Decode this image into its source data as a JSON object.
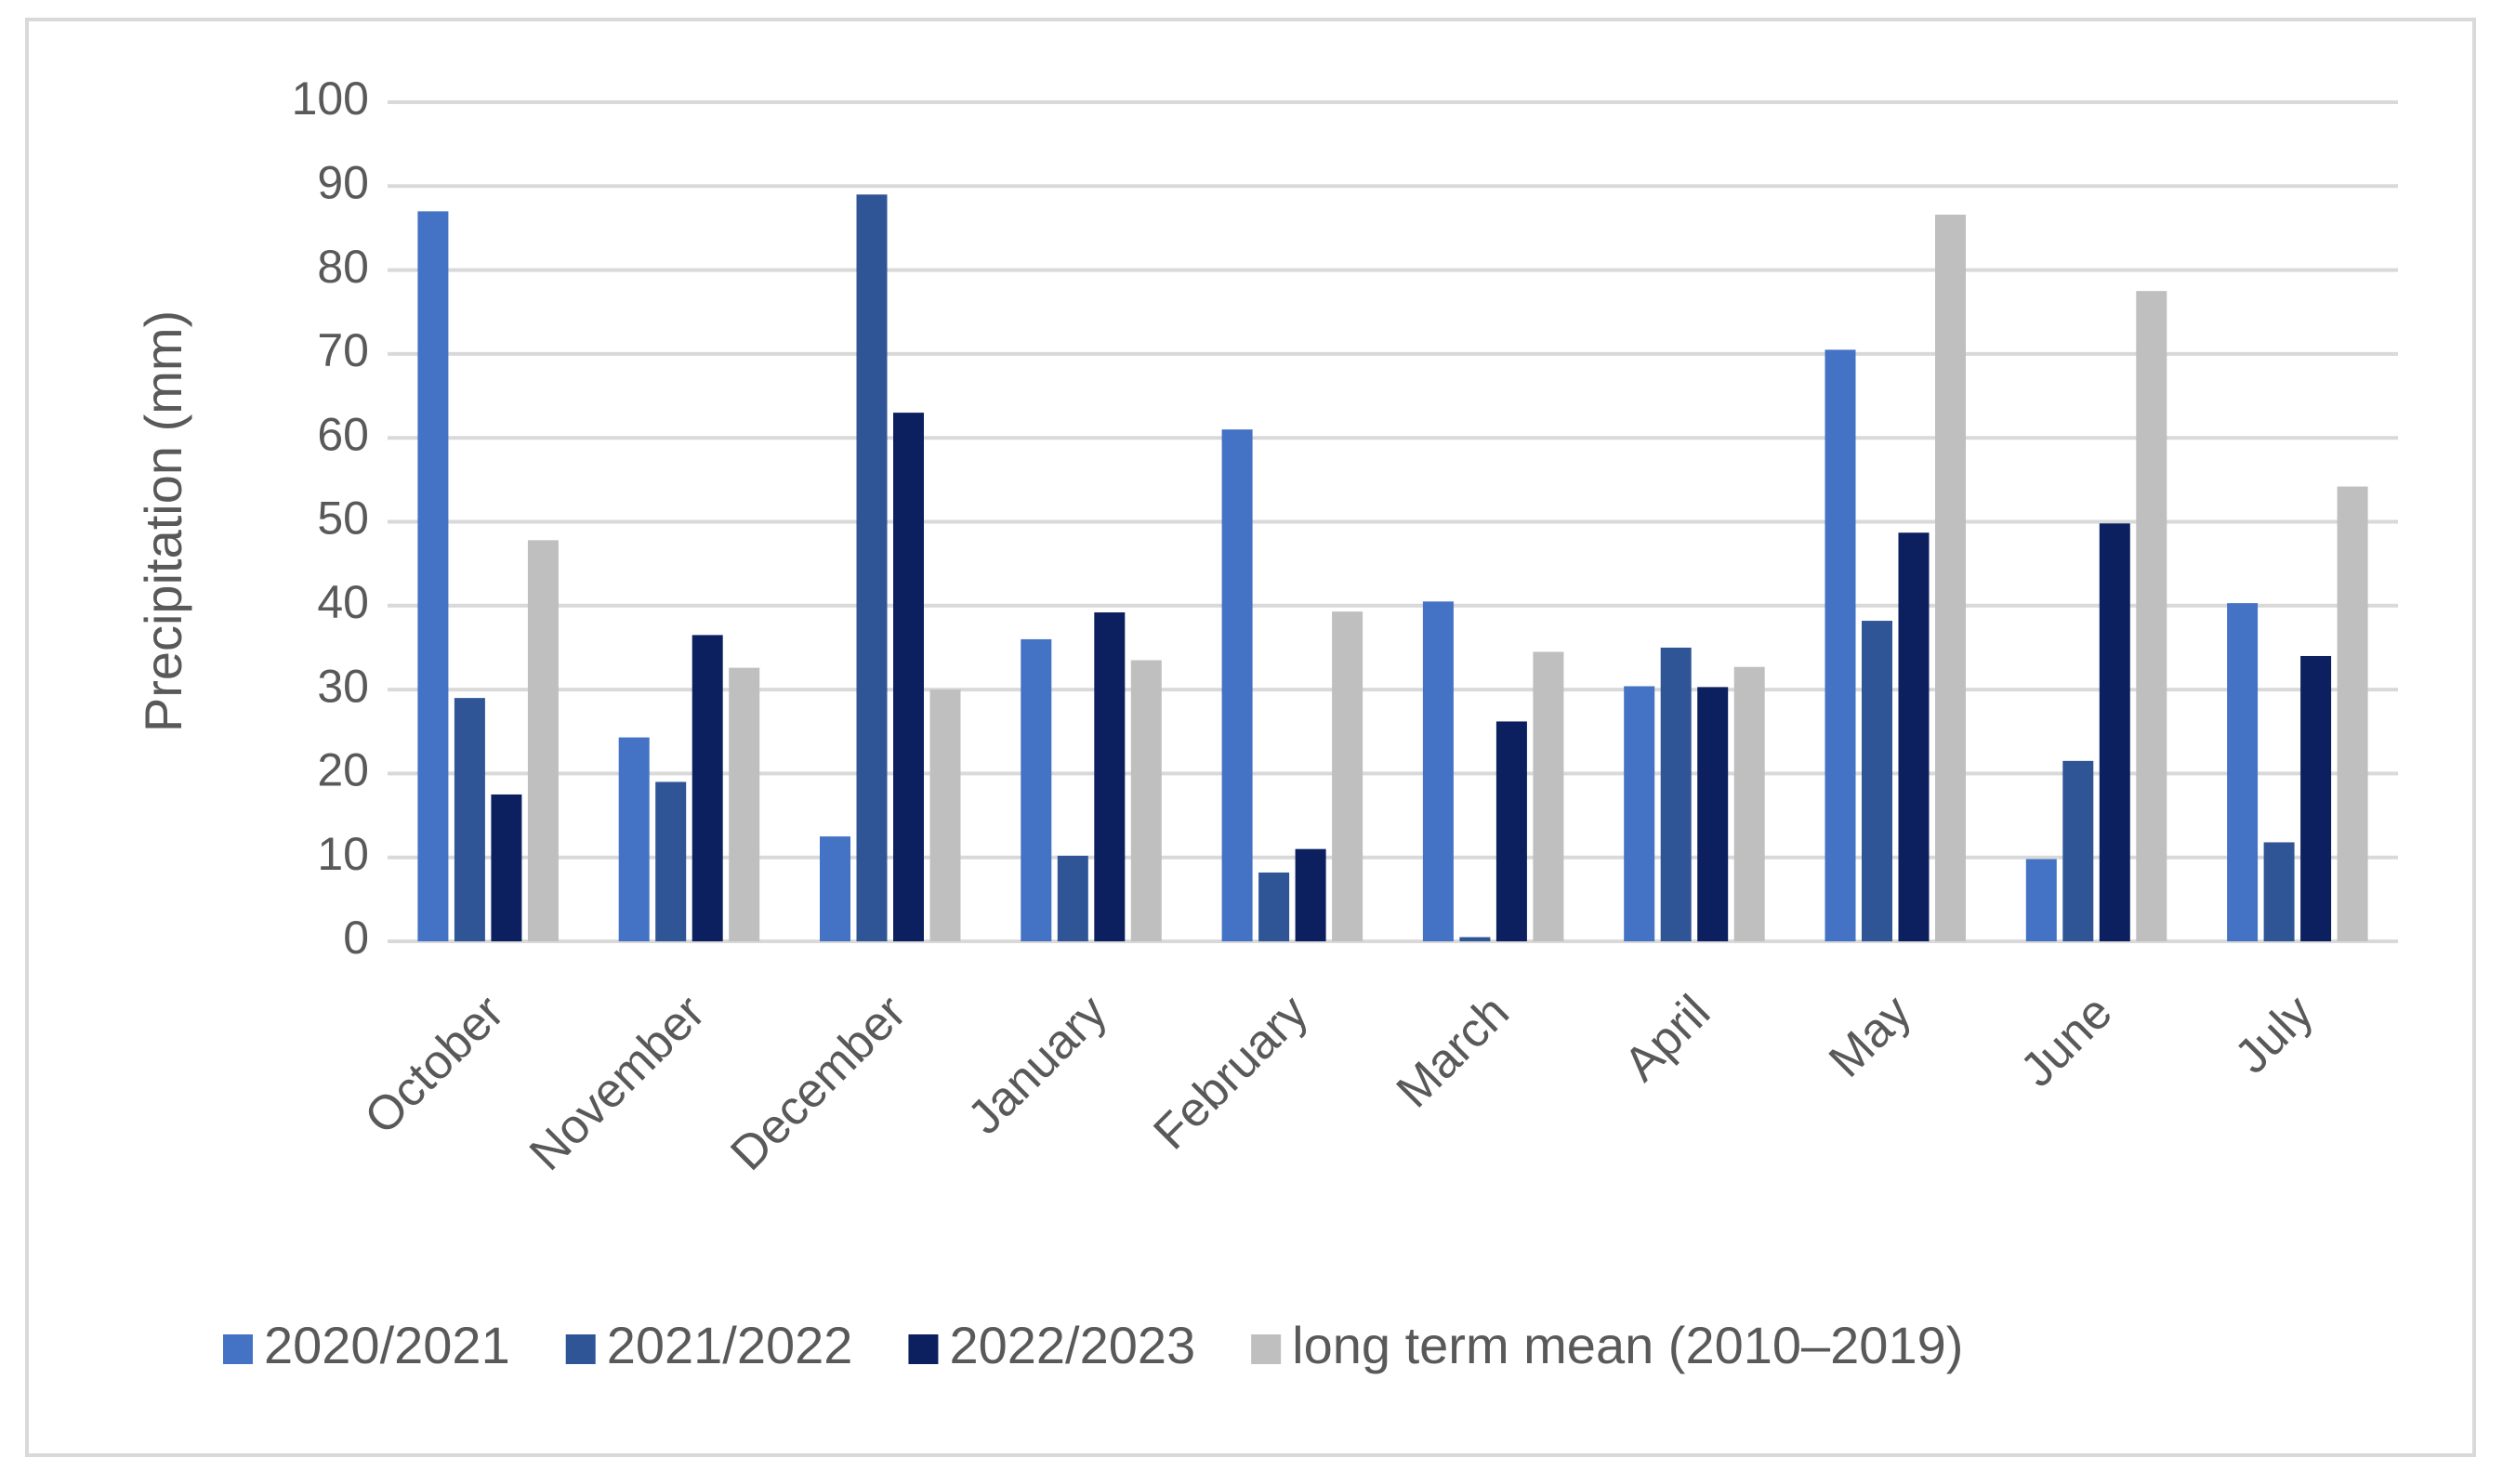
{
  "chart_data": {
    "type": "bar",
    "y_label": "Precipitation (mm)",
    "categories": [
      "October",
      "November",
      "December",
      "January",
      "February",
      "March",
      "April",
      "May",
      "June",
      "July"
    ],
    "series": [
      {
        "name": "2020/2021",
        "color": "#4472c4",
        "values": [
          87,
          24.3,
          12.5,
          36,
          61,
          40.5,
          30.4,
          70.5,
          9.8,
          40.3
        ]
      },
      {
        "name": "2021/2022",
        "color": "#2f5597",
        "values": [
          29,
          19,
          89,
          10.2,
          8.2,
          0.5,
          35,
          38.2,
          21.5,
          11.8
        ]
      },
      {
        "name": "2022/2023",
        "color": "#0c2060",
        "values": [
          17.5,
          36.5,
          63,
          39.2,
          11,
          26.2,
          30.3,
          48.7,
          49.8,
          34
        ]
      },
      {
        "name": "long term mean (2010–2019)",
        "color": "#bfbfbf",
        "values": [
          47.8,
          32.6,
          30,
          33.5,
          39.3,
          34.5,
          32.7,
          86.6,
          77.5,
          54.2
        ]
      }
    ],
    "ylim": [
      0,
      100
    ],
    "yticks": [
      0,
      10,
      20,
      30,
      40,
      50,
      60,
      70,
      80,
      90,
      100
    ],
    "grid": true
  }
}
